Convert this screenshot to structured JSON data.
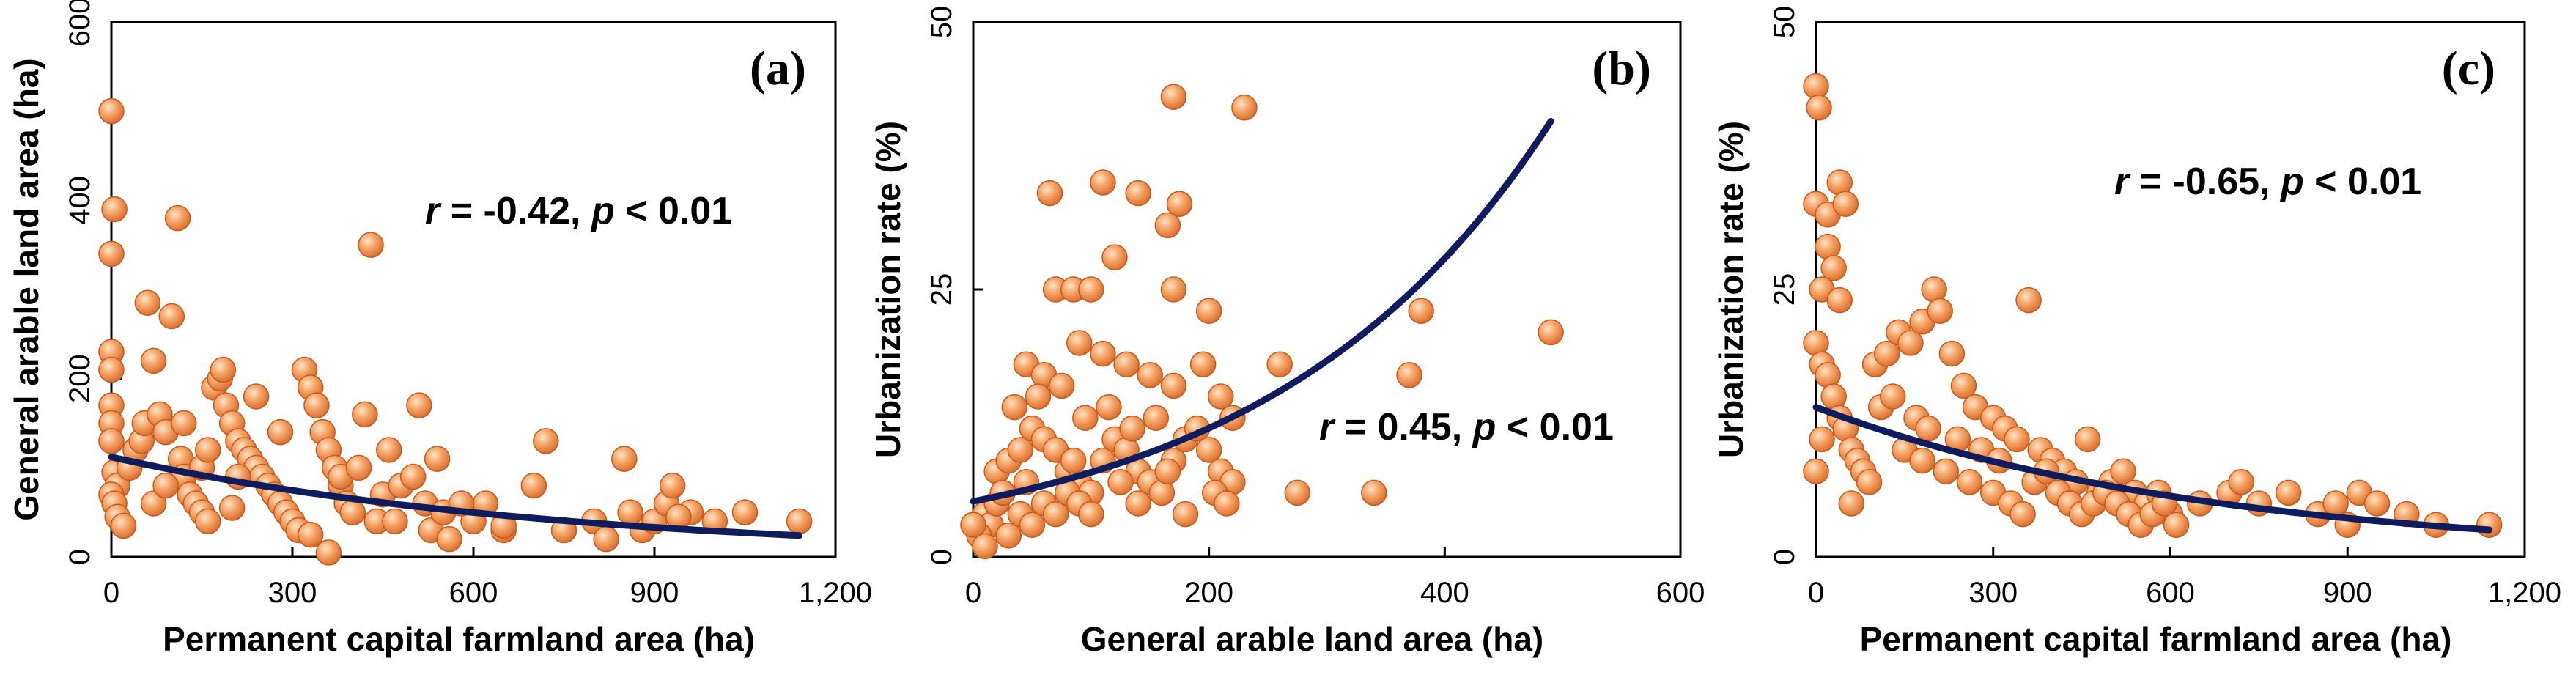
{
  "colors": {
    "point_fill": "#f39c5a",
    "point_stroke": "#c45a1c",
    "curve": "#0e1c5e",
    "axis": "#000000"
  },
  "chart_data": [
    {
      "type": "scatter",
      "panel_label": "(a)",
      "xlabel": "Permanent capital farmland area (ha)",
      "ylabel": "General arable land area (ha)",
      "xlim": [
        0,
        1200
      ],
      "ylim": [
        0,
        600
      ],
      "xticks": [
        "0",
        "300",
        "600",
        "900",
        "1,200"
      ],
      "yticks": [
        "0",
        "200",
        "400",
        "600"
      ],
      "annotation": {
        "r_label": "r",
        "r_text": " = -0.42, ",
        "p_label": "p",
        "p_text": " < 0.01"
      },
      "fit_curve": {
        "model": "exponential",
        "a": 112,
        "b": -0.00135,
        "x_range": [
          0,
          1140
        ]
      },
      "points": [
        [
          0,
          500
        ],
        [
          0,
          340
        ],
        [
          5,
          390
        ],
        [
          0,
          230
        ],
        [
          0,
          210
        ],
        [
          0,
          170
        ],
        [
          0,
          150
        ],
        [
          0,
          130
        ],
        [
          5,
          95
        ],
        [
          10,
          80
        ],
        [
          0,
          70
        ],
        [
          5,
          60
        ],
        [
          10,
          45
        ],
        [
          20,
          35
        ],
        [
          30,
          100
        ],
        [
          40,
          120
        ],
        [
          50,
          130
        ],
        [
          55,
          150
        ],
        [
          60,
          285
        ],
        [
          70,
          220
        ],
        [
          80,
          160
        ],
        [
          90,
          140
        ],
        [
          100,
          270
        ],
        [
          110,
          380
        ],
        [
          115,
          110
        ],
        [
          120,
          90
        ],
        [
          130,
          70
        ],
        [
          140,
          60
        ],
        [
          150,
          50
        ],
        [
          160,
          40
        ],
        [
          170,
          190
        ],
        [
          180,
          200
        ],
        [
          185,
          210
        ],
        [
          190,
          170
        ],
        [
          200,
          150
        ],
        [
          210,
          130
        ],
        [
          220,
          120
        ],
        [
          230,
          110
        ],
        [
          240,
          100
        ],
        [
          250,
          90
        ],
        [
          260,
          80
        ],
        [
          270,
          70
        ],
        [
          280,
          60
        ],
        [
          290,
          50
        ],
        [
          300,
          40
        ],
        [
          310,
          30
        ],
        [
          320,
          210
        ],
        [
          330,
          190
        ],
        [
          340,
          170
        ],
        [
          350,
          140
        ],
        [
          360,
          120
        ],
        [
          370,
          100
        ],
        [
          380,
          80
        ],
        [
          390,
          60
        ],
        [
          400,
          50
        ],
        [
          420,
          160
        ],
        [
          430,
          350
        ],
        [
          440,
          40
        ],
        [
          450,
          70
        ],
        [
          460,
          120
        ],
        [
          480,
          80
        ],
        [
          500,
          90
        ],
        [
          510,
          170
        ],
        [
          520,
          60
        ],
        [
          530,
          30
        ],
        [
          550,
          50
        ],
        [
          560,
          20
        ],
        [
          600,
          40
        ],
        [
          620,
          60
        ],
        [
          650,
          30
        ],
        [
          700,
          80
        ],
        [
          720,
          130
        ],
        [
          750,
          30
        ],
        [
          800,
          40
        ],
        [
          820,
          20
        ],
        [
          850,
          110
        ],
        [
          880,
          30
        ],
        [
          900,
          40
        ],
        [
          920,
          60
        ],
        [
          930,
          80
        ],
        [
          960,
          50
        ],
        [
          1000,
          40
        ],
        [
          1050,
          50
        ],
        [
          1140,
          40
        ],
        [
          70,
          60
        ],
        [
          90,
          80
        ],
        [
          150,
          100
        ],
        [
          200,
          55
        ],
        [
          240,
          180
        ],
        [
          280,
          140
        ],
        [
          330,
          25
        ],
        [
          360,
          5
        ],
        [
          380,
          90
        ],
        [
          410,
          100
        ],
        [
          470,
          40
        ],
        [
          540,
          110
        ],
        [
          580,
          60
        ],
        [
          650,
          35
        ],
        [
          860,
          50
        ],
        [
          940,
          45
        ],
        [
          120,
          150
        ],
        [
          160,
          120
        ],
        [
          210,
          90
        ]
      ]
    },
    {
      "type": "scatter",
      "panel_label": "(b)",
      "xlabel": "General arable land area (ha)",
      "ylabel": "Urbanization rate (%)",
      "xlim": [
        0,
        600
      ],
      "ylim": [
        0,
        50
      ],
      "xticks": [
        "0",
        "200",
        "400",
        "600"
      ],
      "yticks": [
        "0",
        "25",
        "50"
      ],
      "annotation": {
        "r_label": "r",
        "r_text": " = 0.45, ",
        "p_label": "p",
        "p_text": " < 0.01"
      },
      "fit_curve": {
        "model": "exponential",
        "a": 5.2,
        "b": 0.0042,
        "x_range": [
          0,
          490
        ]
      },
      "points": [
        [
          170,
          43
        ],
        [
          230,
          42
        ],
        [
          110,
          35
        ],
        [
          65,
          34
        ],
        [
          140,
          34
        ],
        [
          175,
          33
        ],
        [
          165,
          31
        ],
        [
          120,
          28
        ],
        [
          170,
          25
        ],
        [
          70,
          25
        ],
        [
          85,
          25
        ],
        [
          100,
          25
        ],
        [
          200,
          23
        ],
        [
          45,
          18
        ],
        [
          60,
          17
        ],
        [
          90,
          20
        ],
        [
          110,
          19
        ],
        [
          130,
          18
        ],
        [
          150,
          17
        ],
        [
          170,
          16
        ],
        [
          195,
          18
        ],
        [
          210,
          15
        ],
        [
          220,
          13
        ],
        [
          260,
          18
        ],
        [
          370,
          17
        ],
        [
          380,
          23
        ],
        [
          490,
          21
        ],
        [
          275,
          6
        ],
        [
          340,
          6
        ],
        [
          20,
          8
        ],
        [
          30,
          9
        ],
        [
          40,
          10
        ],
        [
          50,
          12
        ],
        [
          60,
          11
        ],
        [
          70,
          10
        ],
        [
          80,
          8
        ],
        [
          90,
          7
        ],
        [
          100,
          6
        ],
        [
          110,
          9
        ],
        [
          120,
          11
        ],
        [
          130,
          10
        ],
        [
          140,
          8
        ],
        [
          150,
          7
        ],
        [
          160,
          6
        ],
        [
          170,
          9
        ],
        [
          180,
          11
        ],
        [
          190,
          12
        ],
        [
          200,
          10
        ],
        [
          210,
          8
        ],
        [
          220,
          7
        ],
        [
          10,
          4
        ],
        [
          15,
          3
        ],
        [
          20,
          5
        ],
        [
          25,
          6
        ],
        [
          30,
          2
        ],
        [
          40,
          4
        ],
        [
          50,
          3
        ],
        [
          60,
          5
        ],
        [
          70,
          4
        ],
        [
          80,
          6
        ],
        [
          90,
          5
        ],
        [
          5,
          2
        ],
        [
          10,
          1
        ],
        [
          0,
          3
        ],
        [
          35,
          14
        ],
        [
          55,
          15
        ],
        [
          75,
          16
        ],
        [
          95,
          13
        ],
        [
          115,
          14
        ],
        [
          135,
          12
        ],
        [
          155,
          13
        ],
        [
          45,
          7
        ],
        [
          85,
          9
        ],
        [
          125,
          7
        ],
        [
          165,
          8
        ],
        [
          205,
          6
        ],
        [
          215,
          5
        ],
        [
          100,
          4
        ],
        [
          140,
          5
        ],
        [
          180,
          4
        ]
      ]
    },
    {
      "type": "scatter",
      "panel_label": "(c)",
      "xlabel": "Permanent capital farmland area (ha)",
      "ylabel": "Urbanization rate (%)",
      "xlim": [
        0,
        1200
      ],
      "ylim": [
        0,
        50
      ],
      "xticks": [
        "0",
        "300",
        "600",
        "900",
        "1,200"
      ],
      "yticks": [
        "0",
        "25",
        "50"
      ],
      "annotation": {
        "r_label": "r",
        "r_text": " = -0.65, ",
        "p_label": "p",
        "p_text": " < 0.01"
      },
      "fit_curve": {
        "model": "exponential",
        "a": 14,
        "b": -0.0015,
        "x_range": [
          0,
          1140
        ]
      },
      "points": [
        [
          0,
          44
        ],
        [
          5,
          42
        ],
        [
          0,
          33
        ],
        [
          20,
          32
        ],
        [
          40,
          35
        ],
        [
          50,
          33
        ],
        [
          20,
          29
        ],
        [
          30,
          27
        ],
        [
          10,
          25
        ],
        [
          40,
          24
        ],
        [
          0,
          20
        ],
        [
          10,
          18
        ],
        [
          20,
          17
        ],
        [
          30,
          15
        ],
        [
          40,
          13
        ],
        [
          50,
          12
        ],
        [
          60,
          10
        ],
        [
          70,
          9
        ],
        [
          80,
          8
        ],
        [
          0,
          8
        ],
        [
          10,
          11
        ],
        [
          100,
          18
        ],
        [
          120,
          19
        ],
        [
          140,
          21
        ],
        [
          160,
          20
        ],
        [
          180,
          22
        ],
        [
          200,
          25
        ],
        [
          210,
          23
        ],
        [
          230,
          19
        ],
        [
          250,
          16
        ],
        [
          270,
          14
        ],
        [
          300,
          13
        ],
        [
          320,
          12
        ],
        [
          340,
          11
        ],
        [
          360,
          24
        ],
        [
          380,
          10
        ],
        [
          400,
          9
        ],
        [
          420,
          8
        ],
        [
          440,
          7
        ],
        [
          460,
          11
        ],
        [
          480,
          6
        ],
        [
          500,
          7
        ],
        [
          520,
          8
        ],
        [
          540,
          6
        ],
        [
          560,
          5
        ],
        [
          580,
          6
        ],
        [
          600,
          4
        ],
        [
          650,
          5
        ],
        [
          700,
          6
        ],
        [
          720,
          7
        ],
        [
          750,
          5
        ],
        [
          800,
          6
        ],
        [
          850,
          4
        ],
        [
          880,
          5
        ],
        [
          900,
          3
        ],
        [
          920,
          6
        ],
        [
          950,
          5
        ],
        [
          1000,
          4
        ],
        [
          1050,
          3
        ],
        [
          1140,
          3
        ],
        [
          150,
          10
        ],
        [
          180,
          9
        ],
        [
          220,
          8
        ],
        [
          260,
          7
        ],
        [
          300,
          6
        ],
        [
          330,
          5
        ],
        [
          350,
          4
        ],
        [
          370,
          7
        ],
        [
          390,
          8
        ],
        [
          410,
          6
        ],
        [
          430,
          5
        ],
        [
          450,
          4
        ],
        [
          470,
          5
        ],
        [
          490,
          6
        ],
        [
          510,
          5
        ],
        [
          530,
          4
        ],
        [
          550,
          3
        ],
        [
          570,
          4
        ],
        [
          590,
          5
        ],
        [
          610,
          3
        ],
        [
          110,
          14
        ],
        [
          130,
          15
        ],
        [
          170,
          13
        ],
        [
          190,
          12
        ],
        [
          240,
          11
        ],
        [
          280,
          10
        ],
        [
          310,
          9
        ],
        [
          60,
          5
        ],
        [
          90,
          7
        ]
      ]
    }
  ]
}
